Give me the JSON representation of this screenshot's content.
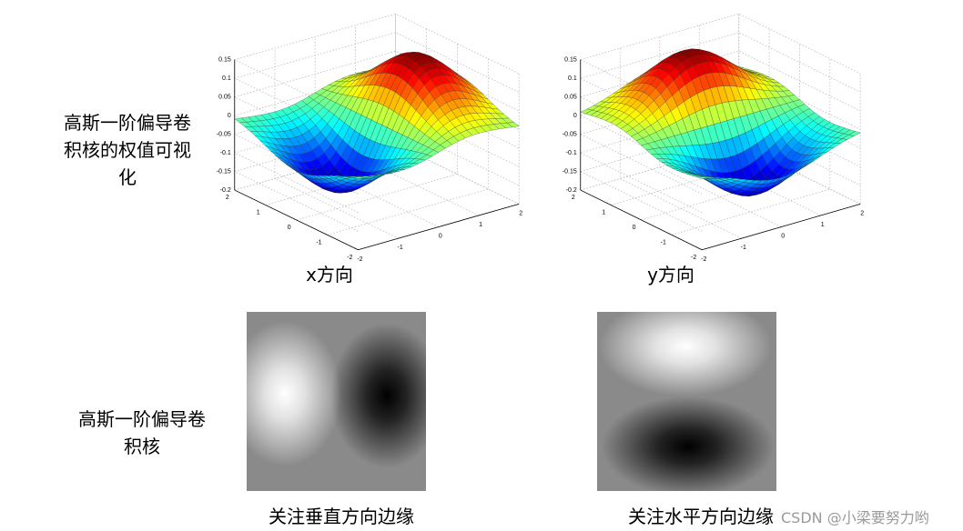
{
  "labels": {
    "row1_left": "高斯一阶偏导卷积核的权值可视化",
    "row1_left_lines": [
      "高斯一阶偏导卷",
      "积核的权值可视",
      "化"
    ],
    "row2_left_lines": [
      "高斯一阶偏导卷",
      "积核"
    ],
    "plot1_caption": "x方向",
    "plot2_caption": "y方向",
    "image1_caption": "关注垂直方向边缘",
    "image2_caption": "关注水平方向边缘",
    "watermark": "CSDN @小梁要努力哟"
  },
  "chart_data": [
    {
      "type": "surface",
      "direction": "x",
      "title": "",
      "xlim": [
        -2,
        2
      ],
      "ylim": [
        -2,
        2
      ],
      "zlim": [
        -0.2,
        0.15
      ],
      "x_ticks": [
        "-2",
        "-1",
        "0",
        "1",
        "2"
      ],
      "y_ticks": [
        "-2",
        "-1",
        "0",
        "1",
        "2"
      ],
      "z_ticks": [
        "-0.2",
        "-0.15",
        "-0.1",
        "-0.05",
        "0",
        "0.05",
        "0.1",
        "0.15"
      ],
      "grid": true,
      "colormap": "jet",
      "z_min_approx": -0.18,
      "z_max_approx": 0.14
    },
    {
      "type": "surface",
      "direction": "y",
      "title": "",
      "xlim": [
        -2,
        2
      ],
      "ylim": [
        -2,
        2
      ],
      "zlim": [
        -0.2,
        0.15
      ],
      "x_ticks": [
        "-2",
        "-1",
        "0",
        "1",
        "2"
      ],
      "y_ticks": [
        "-2",
        "-1",
        "0",
        "1",
        "2"
      ],
      "z_ticks": [
        "-0.2",
        "-0.15",
        "-0.1",
        "-0.05",
        "0",
        "0.05",
        "0.1",
        "0.15"
      ],
      "grid": true,
      "colormap": "jet",
      "z_min_approx": -0.18,
      "z_max_approx": 0.14
    },
    {
      "type": "heatmap",
      "colormap": "gray",
      "caption_ref": "image1_caption"
    },
    {
      "type": "heatmap",
      "colormap": "gray",
      "caption_ref": "image2_caption"
    }
  ]
}
